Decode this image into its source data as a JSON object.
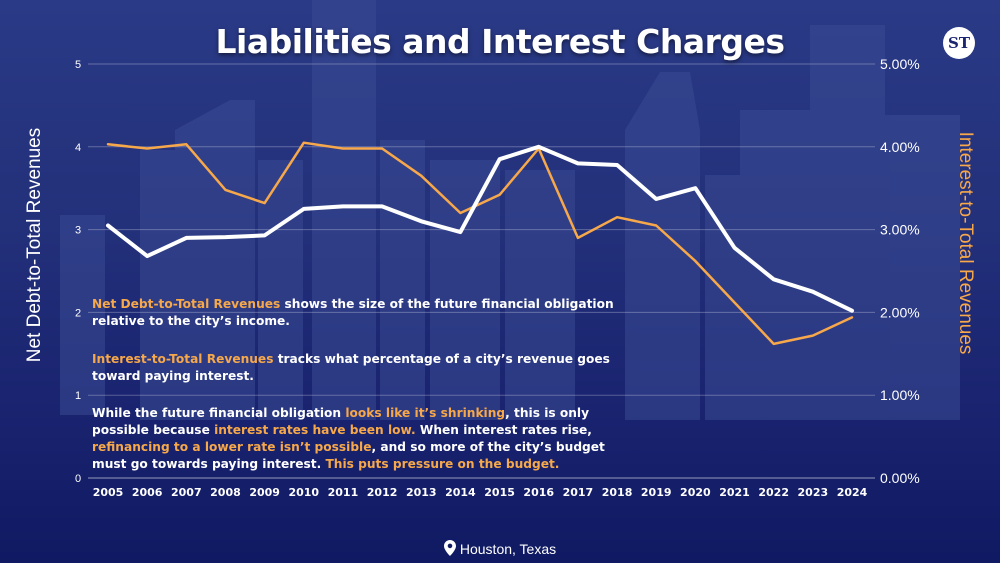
{
  "title": "Liabilities and Interest Charges",
  "logo": "ST",
  "location": "Houston, Texas",
  "colors": {
    "net_debt": "#ffffff",
    "interest": "#f6a84a",
    "highlight": "#f6a84a"
  },
  "chart_data": {
    "type": "line",
    "x": [
      "2005",
      "2006",
      "2007",
      "2008",
      "2009",
      "2010",
      "2011",
      "2012",
      "2013",
      "2014",
      "2015",
      "2016",
      "2017",
      "2018",
      "2019",
      "2020",
      "2021",
      "2022",
      "2023",
      "2024"
    ],
    "series": [
      {
        "name": "Net Debt-to-Total Revenues",
        "axis": "left",
        "values": [
          3.05,
          2.68,
          2.9,
          2.91,
          2.93,
          3.25,
          3.28,
          3.28,
          3.1,
          2.97,
          3.85,
          4.0,
          3.8,
          3.78,
          3.37,
          3.5,
          2.78,
          2.4,
          2.25,
          2.02
        ]
      },
      {
        "name": "Interest-to-Total Revenues",
        "axis": "right",
        "values": [
          4.03,
          3.98,
          4.03,
          3.48,
          3.32,
          4.05,
          3.98,
          3.98,
          3.65,
          3.2,
          3.42,
          3.98,
          2.9,
          3.15,
          3.05,
          2.62,
          2.12,
          1.62,
          1.72,
          1.94
        ]
      }
    ],
    "ylabel": "Net Debt-to-Total Revenues",
    "ylabel_right": "Interest-to-Total Revenues",
    "ylim": [
      0,
      5
    ],
    "ylim_right": [
      0,
      5
    ],
    "yticks": [
      "0",
      "1",
      "2",
      "3",
      "4",
      "5"
    ],
    "yticks_right": [
      "0.00%",
      "1.00%",
      "2.00%",
      "3.00%",
      "4.00%",
      "5.00%"
    ],
    "grid": true
  },
  "annotations": {
    "p1": {
      "h1": "Net Debt-to-Total Revenues",
      "t1": " shows the size of the future financial obligation relative to the city’s income."
    },
    "p2": {
      "h1": "Interest-to-Total Revenues",
      "t1": " tracks what percentage of a city’s revenue goes toward paying interest."
    },
    "p3": {
      "t1": "While the future financial obligation ",
      "h1": "looks like it’s shrinking",
      "t2": ", this is only possible because ",
      "h2": "interest rates have been low.",
      "t3": " When interest rates rise, ",
      "h3": "refinancing to a lower rate isn’t possible",
      "t4": ", and so more of the city’s budget must go towards paying interest. ",
      "h4": "This puts pressure on the budget."
    }
  }
}
